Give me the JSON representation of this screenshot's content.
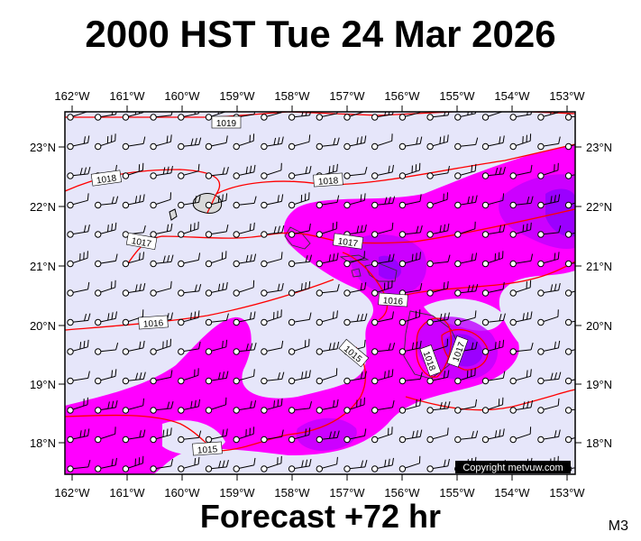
{
  "title": "2000 HST Tue 24 Mar 2026",
  "footer": "Forecast +72 hr",
  "model_code": "M3",
  "copyright": "Copyright metvuw.com",
  "axes": {
    "lon_labels": [
      "162°W",
      "161°W",
      "160°W",
      "159°W",
      "158°W",
      "157°W",
      "156°W",
      "155°W",
      "154°W",
      "153°W"
    ],
    "lat_labels": [
      "23°N",
      "22°N",
      "21°N",
      "20°N",
      "19°N",
      "18°N"
    ]
  },
  "isobars": [
    {
      "label": "1019"
    },
    {
      "label": "1018"
    },
    {
      "label": "1018"
    },
    {
      "label": "1017"
    },
    {
      "label": "1017"
    },
    {
      "label": "1016"
    },
    {
      "label": "1016"
    },
    {
      "label": "1015"
    },
    {
      "label": "1015"
    },
    {
      "label": "1018"
    },
    {
      "label": "1017"
    }
  ],
  "colors": {
    "ocean": "#e6e6fa",
    "rain_light": "#ff00ff",
    "rain_medium": "#bf00ff",
    "rain_heavy": "#8b00ff",
    "isobar": "#ff0000",
    "land": "#d9d9d9"
  }
}
